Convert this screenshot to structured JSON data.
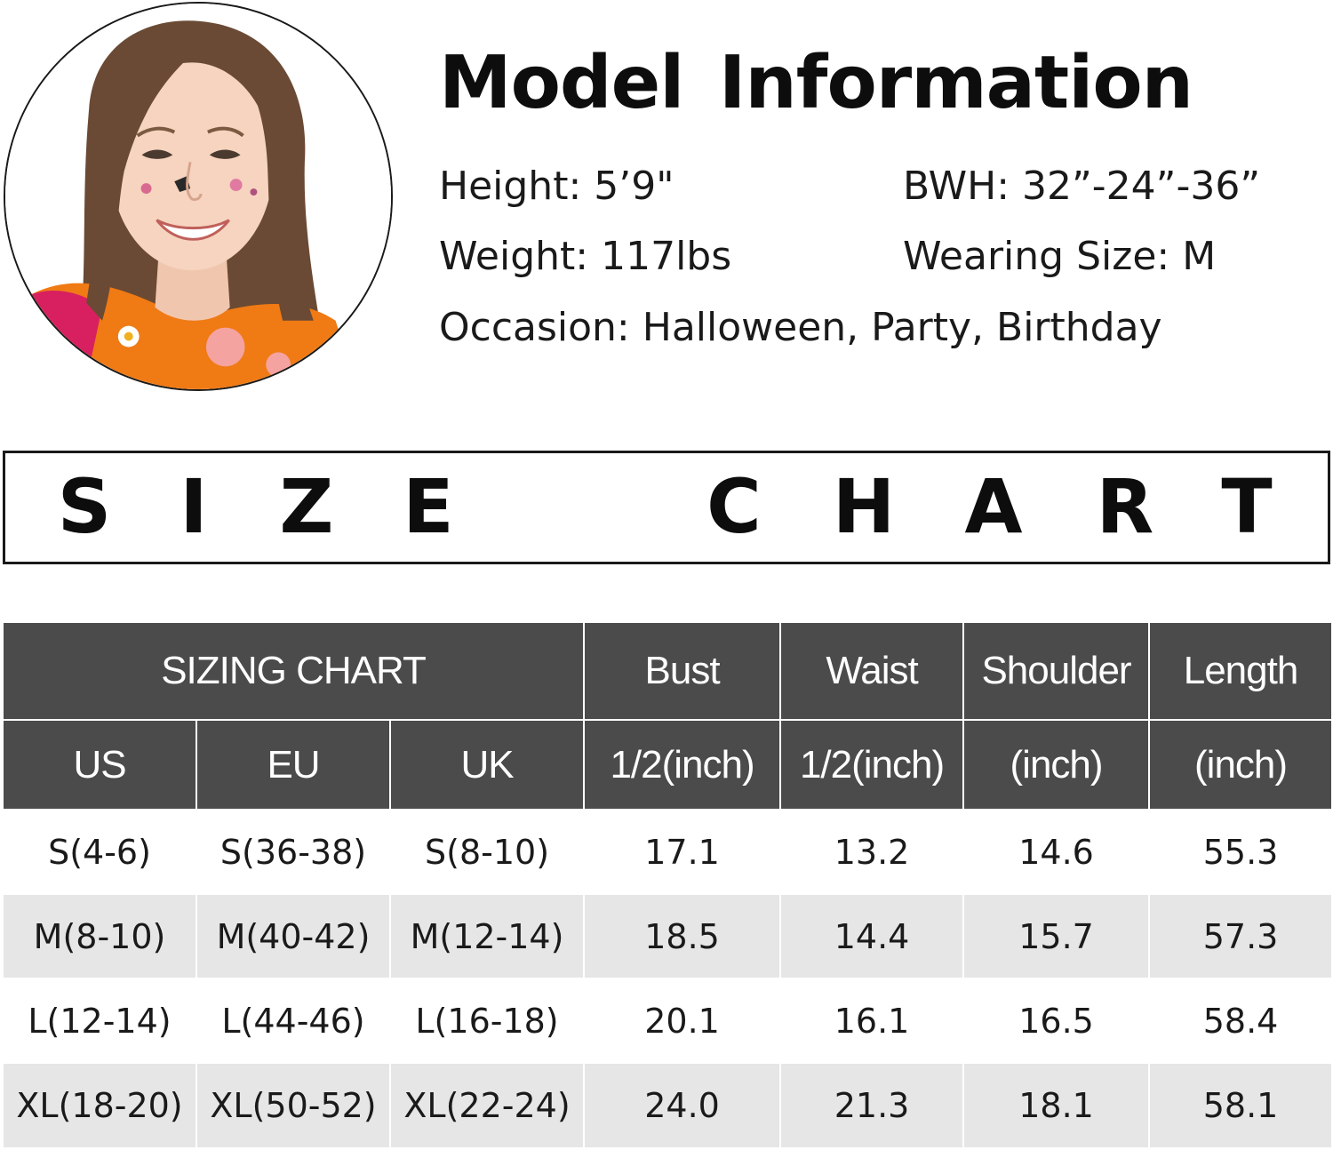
{
  "model": {
    "title": "Model Information",
    "height": "Height: 5’9\"",
    "bwh": "BWH: 32”-24”-36”",
    "weight": "Weight: 117lbs",
    "wearing_size": "Wearing Size: M",
    "occasion": "Occasion: Halloween, Party, Birthday"
  },
  "banner": {
    "letters": [
      "S",
      "I",
      "Z",
      "E",
      "C",
      "H",
      "A",
      "R",
      "T"
    ]
  },
  "table": {
    "group_header": "SIZING CHART",
    "measure_headers": [
      "Bust",
      "Waist",
      "Shoulder",
      "Length"
    ],
    "region_headers": [
      "US",
      "EU",
      "UK"
    ],
    "unit_headers": [
      "1/2(inch)",
      "1/2(inch)",
      "(inch)",
      "(inch)"
    ],
    "rows": [
      [
        "S(4-6)",
        "S(36-38)",
        "S(8-10)",
        "17.1",
        "13.2",
        "14.6",
        "55.3"
      ],
      [
        "M(8-10)",
        "M(40-42)",
        "M(12-14)",
        "18.5",
        "14.4",
        "15.7",
        "57.3"
      ],
      [
        "L(12-14)",
        "L(44-46)",
        "L(16-18)",
        "20.1",
        "16.1",
        "16.5",
        "58.4"
      ],
      [
        "XL(18-20)",
        "XL(50-52)",
        "XL(22-24)",
        "24.0",
        "21.3",
        "18.1",
        "58.1"
      ]
    ]
  },
  "colors": {
    "header_bg": "#4b4b4b",
    "row_alt_bg": "#e6e6e6",
    "text": "#1a1a1a"
  }
}
